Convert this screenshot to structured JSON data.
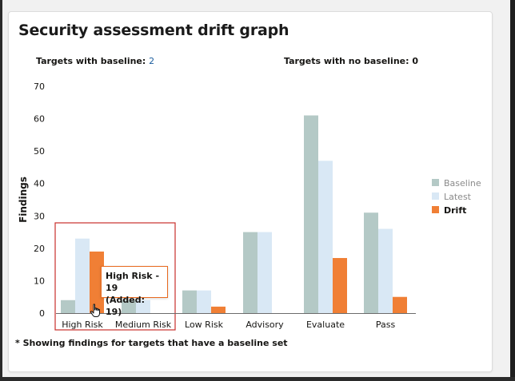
{
  "card": {
    "title": "Security assessment drift graph",
    "targets_with_baseline_label": "Targets with baseline: ",
    "targets_with_baseline_value": "2",
    "targets_with_no_baseline_label": "Targets with no baseline: ",
    "targets_with_no_baseline_value": "0",
    "footnote": "* Showing findings for targets that have a baseline set"
  },
  "tooltip": {
    "line1": "High Risk - 19",
    "line2": "(Added: 19)"
  },
  "chart_data": {
    "type": "bar",
    "title": "",
    "ylabel": "Findings",
    "xlabel": "",
    "ylim": [
      0,
      70
    ],
    "yticks": [
      0,
      10,
      20,
      30,
      40,
      50,
      60,
      70
    ],
    "categories": [
      "High Risk",
      "Medium Risk",
      "Low Risk",
      "Advisory",
      "Evaluate",
      "Pass"
    ],
    "series": [
      {
        "name": "Baseline",
        "color": "#b4c9c6",
        "values": [
          4,
          4,
          7,
          25,
          61,
          31
        ]
      },
      {
        "name": "Latest",
        "color": "#d9e8f5",
        "values": [
          23,
          4,
          7,
          25,
          47,
          26
        ]
      },
      {
        "name": "Drift",
        "color": "#f07f35",
        "values": [
          19,
          0,
          2,
          0,
          17,
          5
        ]
      }
    ],
    "legend_position": "right",
    "selected_category": "High Risk",
    "grid": false
  }
}
